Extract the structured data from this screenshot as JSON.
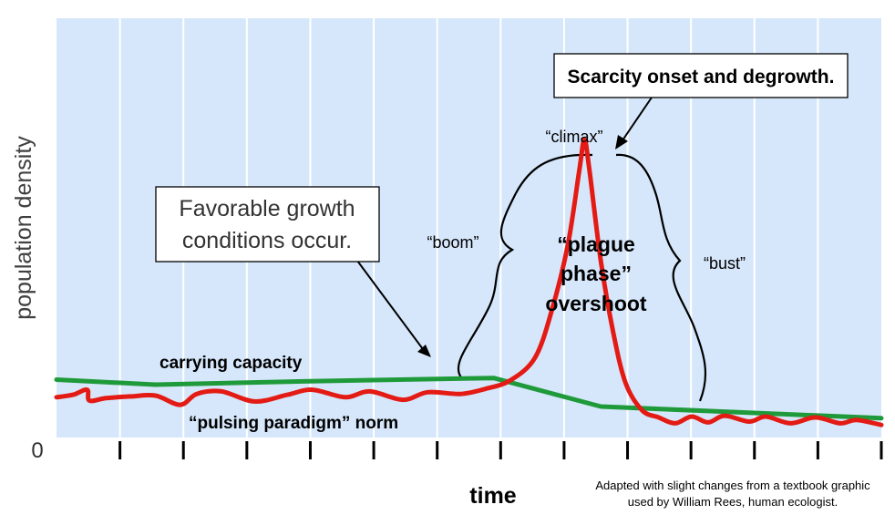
{
  "chart_data": {
    "type": "line",
    "ylabel": "population density",
    "xlabel": "time",
    "y_zero_label": "0",
    "ylim": [
      0,
      100
    ],
    "xlim": [
      0,
      100
    ],
    "x_ticks": 13,
    "grid": "vertical",
    "series": [
      {
        "name": "carrying capacity",
        "color": "#1f9a3a",
        "points": [
          [
            0,
            13.8
          ],
          [
            12,
            12.6
          ],
          [
            30,
            13.4
          ],
          [
            53,
            14.2
          ],
          [
            66,
            7.4
          ],
          [
            100,
            4.6
          ]
        ]
      },
      {
        "name": "“pulsing paradigm” norm",
        "color": "#e31b14",
        "points": [
          [
            0,
            9.6
          ],
          [
            2,
            10.2
          ],
          [
            3.7,
            11.4
          ],
          [
            4,
            8.8
          ],
          [
            6,
            9.4
          ],
          [
            9,
            9.8
          ],
          [
            12,
            10.0
          ],
          [
            15,
            7.8
          ],
          [
            17,
            10.4
          ],
          [
            20,
            11.0
          ],
          [
            24,
            8.6
          ],
          [
            28,
            10.2
          ],
          [
            31,
            11.4
          ],
          [
            35,
            9.6
          ],
          [
            38,
            11.0
          ],
          [
            42,
            9.0
          ],
          [
            45,
            10.8
          ],
          [
            49,
            10.4
          ],
          [
            52,
            11.6
          ],
          [
            55,
            13.6
          ],
          [
            58,
            19.0
          ],
          [
            60,
            30.0
          ],
          [
            62,
            46.0
          ],
          [
            63.4,
            64.0
          ],
          [
            64,
            71.0
          ],
          [
            64.6,
            64.0
          ],
          [
            66,
            42.0
          ],
          [
            67.5,
            25.0
          ],
          [
            69,
            13.0
          ],
          [
            71,
            6.5
          ],
          [
            73,
            4.8
          ],
          [
            75,
            3.4
          ],
          [
            77,
            5.0
          ],
          [
            79,
            3.6
          ],
          [
            81,
            5.2
          ],
          [
            84,
            3.8
          ],
          [
            86,
            5.0
          ],
          [
            89,
            3.4
          ],
          [
            92,
            4.8
          ],
          [
            95,
            3.4
          ],
          [
            97,
            4.2
          ],
          [
            100,
            3.0
          ]
        ]
      }
    ],
    "annotations": {
      "favorable": [
        "Favorable growth",
        "conditions occur."
      ],
      "scarcity": "Scarcity onset and degrowth.",
      "climax": "“climax”",
      "boom": "“boom”",
      "bust": "“bust”",
      "plague": [
        "“plague",
        "phase”",
        "overshoot"
      ],
      "carrying_label": "carrying capacity",
      "pulsing_label": "“pulsing paradigm” norm"
    },
    "colors": {
      "plot_background": "#d6e7fb",
      "grid_line": "#ffffff",
      "carrying_capacity": "#1f9a3a",
      "population": "#e31b14"
    }
  },
  "source_note": [
    "Adapted with slight changes from a textbook graphic",
    "used by William Rees, human ecologist."
  ]
}
